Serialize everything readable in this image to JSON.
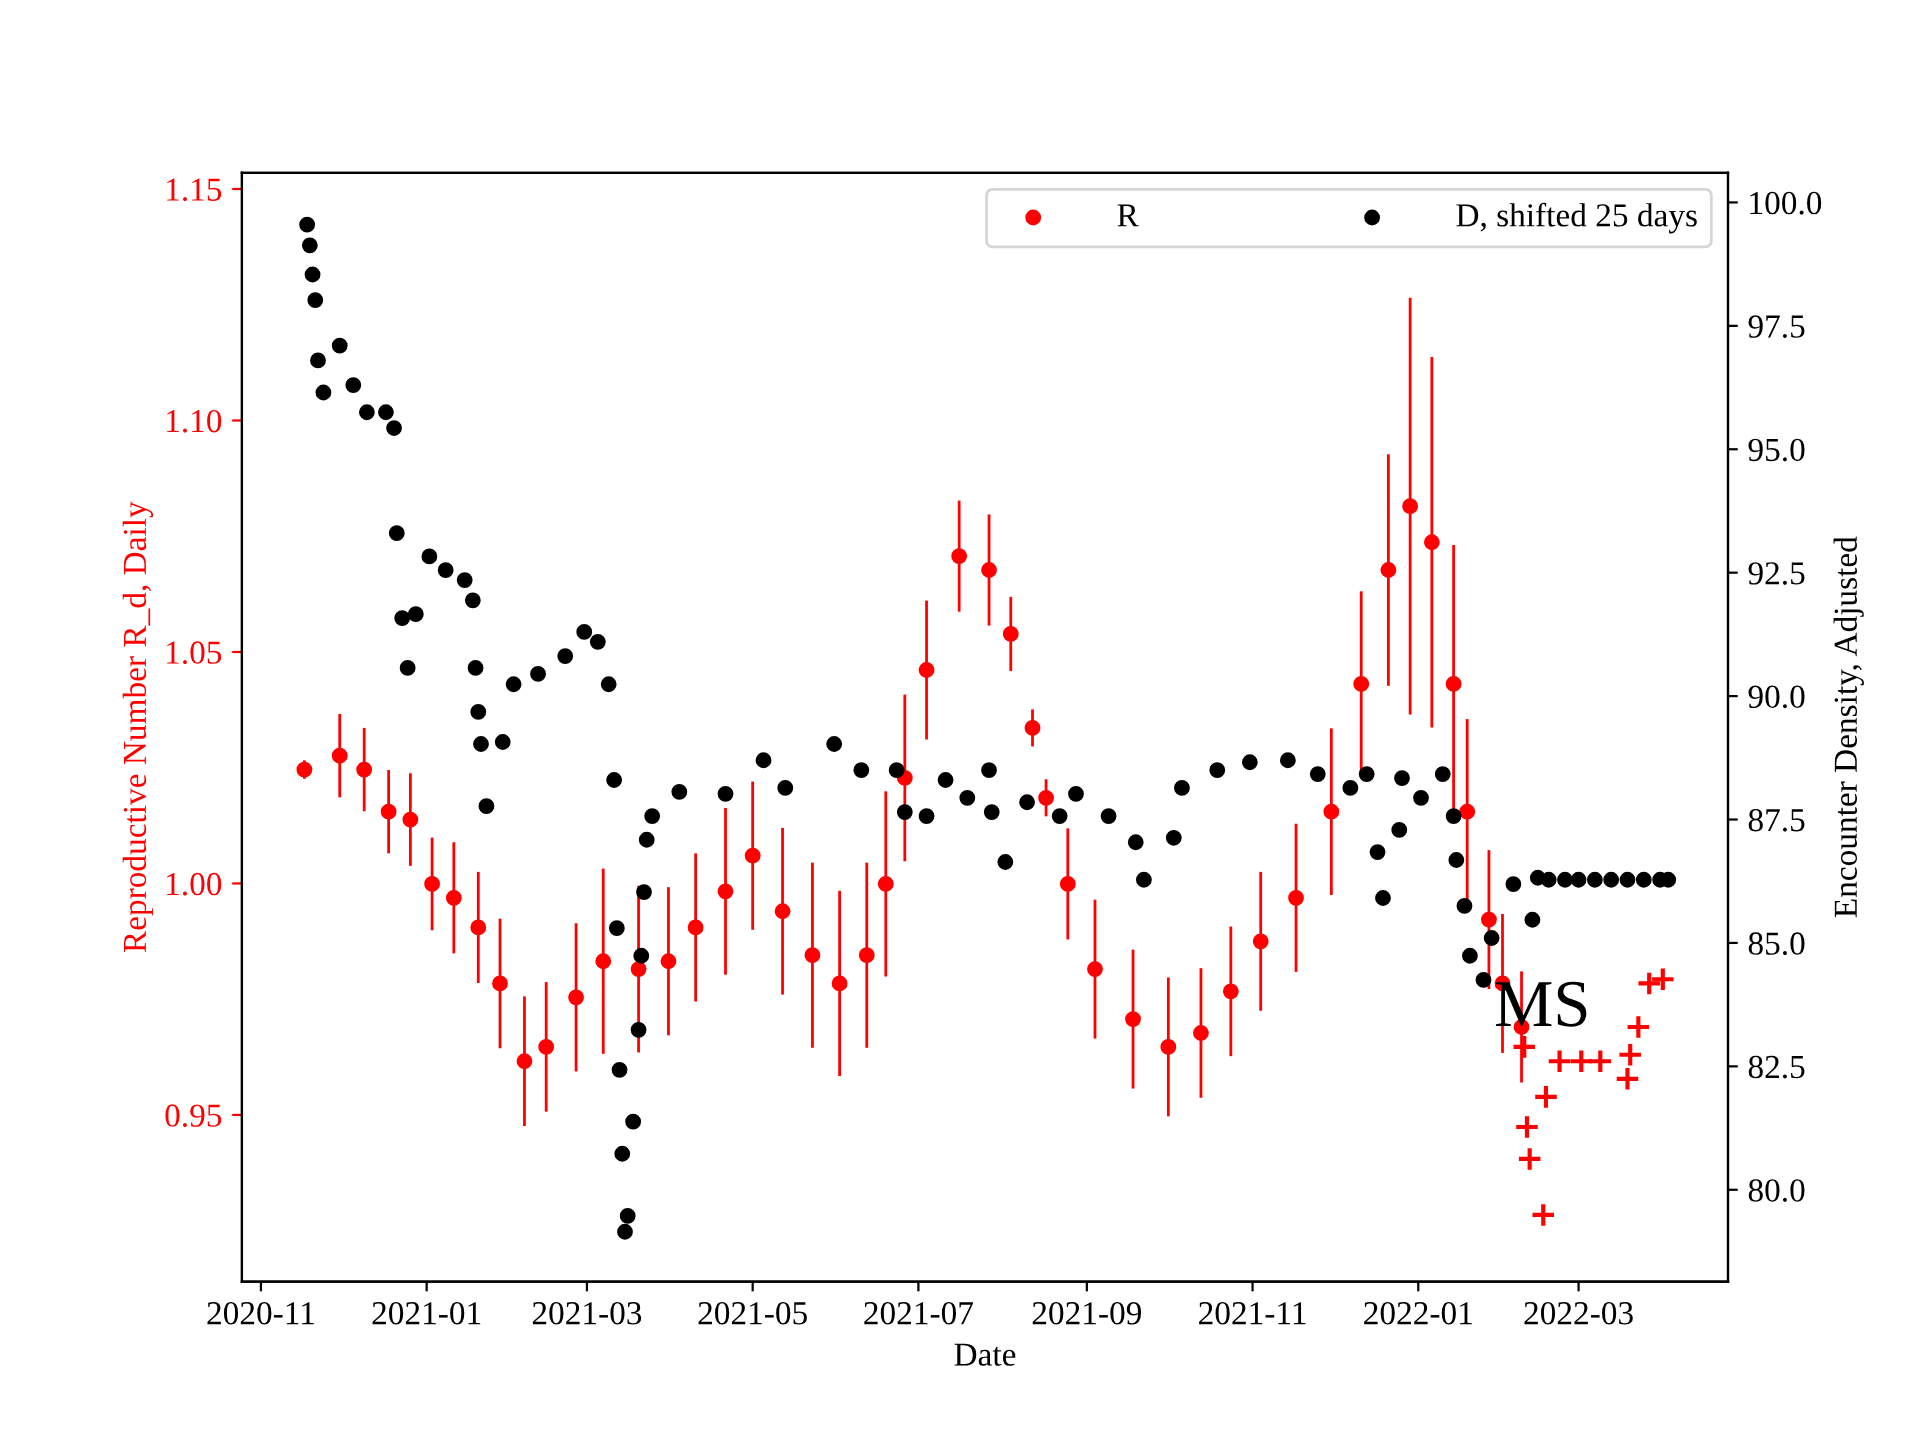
{
  "chart_data": {
    "type": "scatter",
    "xlabel": "Date",
    "ylabel": "Reproductive Number R_d, Daily",
    "y2label": "Encounter Density, Adjusted",
    "xlim": [
      "2020-10-25",
      "2022-04-25"
    ],
    "xticks": [
      {
        "value": "2020-11-01",
        "label": "2020-11"
      },
      {
        "value": "2021-01-01",
        "label": "2021-01"
      },
      {
        "value": "2021-03-01",
        "label": "2021-03"
      },
      {
        "value": "2021-05-01",
        "label": "2021-05"
      },
      {
        "value": "2021-07-01",
        "label": "2021-07"
      },
      {
        "value": "2021-09-01",
        "label": "2021-09"
      },
      {
        "value": "2021-11-01",
        "label": "2021-11"
      },
      {
        "value": "2022-01-01",
        "label": "2022-01"
      },
      {
        "value": "2022-03-01",
        "label": "2022-03"
      }
    ],
    "ylim": [
      0.914,
      1.1535
    ],
    "yticks": [
      {
        "value": 0.95,
        "label": "0.95"
      },
      {
        "value": 1.0,
        "label": "1.00"
      },
      {
        "value": 1.05,
        "label": "1.05"
      },
      {
        "value": 1.1,
        "label": "1.10"
      },
      {
        "value": 1.15,
        "label": "1.15"
      }
    ],
    "y2lim": [
      78.14,
      100.6
    ],
    "y2ticks": [
      {
        "value": 80,
        "label": "80.0"
      },
      {
        "value": 82.5,
        "label": "82.5"
      },
      {
        "value": 85,
        "label": "85.0"
      },
      {
        "value": 87.5,
        "label": "87.5"
      },
      {
        "value": 90,
        "label": "90.0"
      },
      {
        "value": 92.5,
        "label": "92.5"
      },
      {
        "value": 95,
        "label": "95.0"
      },
      {
        "value": 97.5,
        "label": "97.5"
      },
      {
        "value": 100,
        "label": "100.0"
      }
    ],
    "grid": false,
    "legend": "top right",
    "annotations": [
      "MS"
    ],
    "series": [
      {
        "name": "R",
        "color": "#ff0000",
        "marker": "circle",
        "x": [
          "2020-11-17",
          "2020-11-30",
          "2020-12-09",
          "2020-12-18",
          "2020-12-26",
          "2021-01-03",
          "2021-01-11",
          "2021-01-20",
          "2021-01-28",
          "2021-02-06",
          "2021-02-14",
          "2021-02-25",
          "2021-03-07",
          "2021-03-20",
          "2021-03-31",
          "2021-04-10",
          "2021-04-21",
          "2021-05-01",
          "2021-05-12",
          "2021-05-23",
          "2021-06-02",
          "2021-06-12",
          "2021-06-19",
          "2021-06-26",
          "2021-07-04",
          "2021-07-16",
          "2021-07-27",
          "2021-08-04",
          "2021-08-12",
          "2021-08-17",
          "2021-08-25",
          "2021-09-04",
          "2021-09-18",
          "2021-10-01",
          "2021-10-13",
          "2021-10-24",
          "2021-11-04",
          "2021-11-17",
          "2021-11-30",
          "2021-12-11",
          "2021-12-21",
          "2021-12-29",
          "2022-01-06",
          "2022-01-14",
          "2022-01-19",
          "2022-01-27",
          "2022-02-01",
          "2022-02-08"
        ],
        "values": [
          1.0246,
          1.0276,
          1.0246,
          1.0155,
          1.0138,
          0.9999,
          0.9969,
          0.9905,
          0.9784,
          0.9616,
          0.9647,
          0.9754,
          0.9832,
          0.9815,
          0.9832,
          0.9905,
          0.9983,
          1.006,
          0.994,
          0.9845,
          0.9784,
          0.9845,
          0.9999,
          1.0228,
          1.0461,
          1.0707,
          1.0677,
          1.0539,
          1.0336,
          1.0185,
          0.9999,
          0.9815,
          0.9707,
          0.9647,
          0.9677,
          0.9767,
          0.9875,
          0.9969,
          1.0155,
          1.0431,
          1.0677,
          1.0815,
          1.0737,
          1.0431,
          1.0155,
          0.9922,
          0.9784,
          0.969
        ],
        "errors": [
          0.002,
          0.009,
          0.009,
          0.009,
          0.01,
          0.01,
          0.012,
          0.012,
          0.014,
          0.014,
          0.014,
          0.016,
          0.02,
          0.018,
          0.016,
          0.016,
          0.018,
          0.016,
          0.018,
          0.02,
          0.02,
          0.02,
          0.02,
          0.018,
          0.015,
          0.012,
          0.012,
          0.008,
          0.004,
          0.004,
          0.012,
          0.015,
          0.015,
          0.015,
          0.014,
          0.014,
          0.015,
          0.016,
          0.018,
          0.02,
          0.025,
          0.045,
          0.04,
          0.03,
          0.02,
          0.015,
          0.015,
          0.012
        ]
      },
      {
        "color": "#ff0000",
        "marker": "cross",
        "x": [
          "2022-02-09",
          "2022-02-10",
          "2022-02-11",
          "2022-02-16",
          "2022-02-17",
          "2022-02-22",
          "2022-03-02",
          "2022-03-09",
          "2022-03-19",
          "2022-03-20",
          "2022-03-23",
          "2022-03-27",
          "2022-04-01"
        ],
        "values": [
          0.9647,
          0.9474,
          0.9405,
          0.9284,
          0.9539,
          0.9616,
          0.9616,
          0.9616,
          0.9578,
          0.963,
          0.969,
          0.9784,
          0.9793
        ]
      },
      {
        "name": "D, shifted 25 days",
        "color": "#000000",
        "axis": "y2",
        "marker": "circle",
        "x": [
          "2020-11-18",
          "2020-11-19",
          "2020-11-20",
          "2020-11-21",
          "2020-11-22",
          "2020-11-24",
          "2020-11-30",
          "2020-12-05",
          "2020-12-10",
          "2020-12-17",
          "2020-12-20",
          "2020-12-21",
          "2020-12-23",
          "2020-12-25",
          "2020-12-28",
          "2021-01-02",
          "2021-01-08",
          "2021-01-15",
          "2021-01-18",
          "2021-01-19",
          "2021-01-20",
          "2021-01-21",
          "2021-01-23",
          "2021-01-29",
          "2021-02-02",
          "2021-02-11",
          "2021-02-21",
          "2021-02-28",
          "2021-03-05",
          "2021-03-09",
          "2021-03-11",
          "2021-03-12",
          "2021-03-13",
          "2021-03-14",
          "2021-03-15",
          "2021-03-16",
          "2021-03-18",
          "2021-03-20",
          "2021-03-21",
          "2021-03-22",
          "2021-03-23",
          "2021-03-25",
          "2021-04-04",
          "2021-04-21",
          "2021-05-05",
          "2021-05-13",
          "2021-05-31",
          "2021-06-10",
          "2021-06-23",
          "2021-06-26",
          "2021-07-04",
          "2021-07-11",
          "2021-07-19",
          "2021-07-27",
          "2021-07-28",
          "2021-08-02",
          "2021-08-10",
          "2021-08-22",
          "2021-08-28",
          "2021-09-09",
          "2021-09-19",
          "2021-09-22",
          "2021-10-03",
          "2021-10-06",
          "2021-10-19",
          "2021-10-31",
          "2021-11-14",
          "2021-11-25",
          "2021-12-07",
          "2021-12-13",
          "2021-12-17",
          "2021-12-19",
          "2021-12-25",
          "2021-12-26",
          "2022-01-02",
          "2022-01-10",
          "2022-01-14",
          "2022-01-15",
          "2022-01-18",
          "2022-01-20",
          "2022-01-25",
          "2022-01-28",
          "2022-02-05",
          "2022-02-12",
          "2022-02-14",
          "2022-02-18",
          "2022-02-24",
          "2022-03-01",
          "2022-03-07",
          "2022-03-13",
          "2022-03-19",
          "2022-03-25",
          "2022-03-31",
          "2022-04-03"
        ],
        "values": [
          99.55,
          99.13,
          98.54,
          98.02,
          96.8,
          96.15,
          97.1,
          96.3,
          95.75,
          95.75,
          95.43,
          93.3,
          91.58,
          90.57,
          91.66,
          92.83,
          92.55,
          92.35,
          91.94,
          90.57,
          89.68,
          89.03,
          87.77,
          89.07,
          90.24,
          90.45,
          90.81,
          91.3,
          91.1,
          90.24,
          88.3,
          85.3,
          82.43,
          80.73,
          79.15,
          79.47,
          81.38,
          83.24,
          84.74,
          86.03,
          87.09,
          87.57,
          88.06,
          88.02,
          88.7,
          88.14,
          89.03,
          88.5,
          88.5,
          87.65,
          87.57,
          88.3,
          87.94,
          88.5,
          87.65,
          86.64,
          87.85,
          87.57,
          88.02,
          87.57,
          87.04,
          86.28,
          87.13,
          88.14,
          88.5,
          88.66,
          88.7,
          88.42,
          88.14,
          88.42,
          86.84,
          85.91,
          87.29,
          88.34,
          87.94,
          88.42,
          87.57,
          86.68,
          85.75,
          84.74,
          84.25,
          85.1,
          86.19,
          85.47,
          86.32,
          86.28,
          86.28,
          86.28,
          86.28,
          86.28,
          86.28,
          86.28,
          86.28,
          86.28
        ]
      }
    ]
  }
}
